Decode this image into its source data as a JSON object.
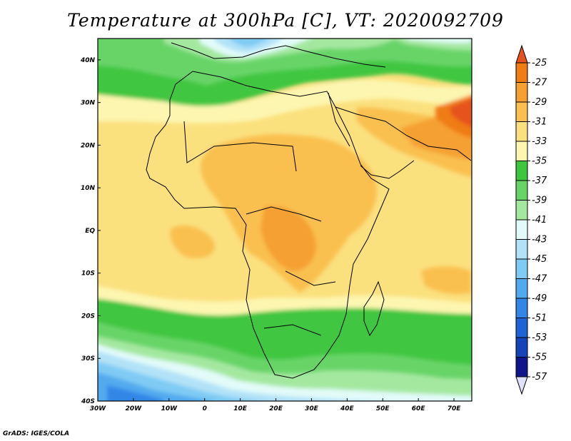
{
  "title": "Temperature at 300hPa [C], VT: 2020092709",
  "credit": "GrADS: IGES/COLA",
  "map": {
    "lon_range": [
      -30,
      75
    ],
    "lat_range": [
      -40,
      45
    ],
    "lat_ticks": [
      {
        "value": 40,
        "label": "40N"
      },
      {
        "value": 30,
        "label": "30N"
      },
      {
        "value": 20,
        "label": "20N"
      },
      {
        "value": 10,
        "label": "10N"
      },
      {
        "value": 0,
        "label": "EQ"
      },
      {
        "value": -10,
        "label": "10S"
      },
      {
        "value": -20,
        "label": "20S"
      },
      {
        "value": -30,
        "label": "30S"
      },
      {
        "value": -40,
        "label": "40S"
      }
    ],
    "lon_ticks": [
      {
        "value": -30,
        "label": "30W"
      },
      {
        "value": -20,
        "label": "20W"
      },
      {
        "value": -10,
        "label": "10W"
      },
      {
        "value": 0,
        "label": "0"
      },
      {
        "value": 10,
        "label": "10E"
      },
      {
        "value": 20,
        "label": "20E"
      },
      {
        "value": 30,
        "label": "30E"
      },
      {
        "value": 40,
        "label": "40E"
      },
      {
        "value": 50,
        "label": "50E"
      },
      {
        "value": 60,
        "label": "60E"
      },
      {
        "value": 70,
        "label": "70E"
      }
    ]
  },
  "colorbar": {
    "levels": [
      "-25",
      "-27",
      "-29",
      "-31",
      "-33",
      "-35",
      "-37",
      "-39",
      "-41",
      "-43",
      "-45",
      "-47",
      "-49",
      "-51",
      "-53",
      "-55",
      "-57"
    ],
    "colors": [
      "#e6531c",
      "#f07c14",
      "#f5a030",
      "#f9c050",
      "#fbe07e",
      "#fdf6b0",
      "#3fc63f",
      "#68d468",
      "#a4e8a0",
      "#e2fbf9",
      "#b2e2f8",
      "#7fcbf4",
      "#52aaee",
      "#3286e6",
      "#1f64d4",
      "#1743b8",
      "#10168a",
      "#e0e0f8"
    ]
  }
}
